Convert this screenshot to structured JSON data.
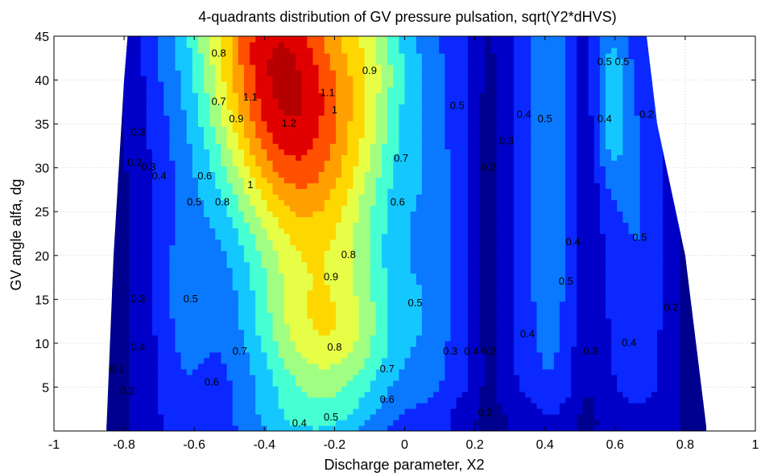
{
  "chart_data": {
    "type": "contour",
    "title": "4-quadrants distribution of GV pressure pulsation, sqrt(Y2*dHVS)",
    "xlabel": "Discharge parameter, X2",
    "ylabel": "GV angle alfa, dg",
    "xlim": [
      -1,
      1
    ],
    "ylim": [
      0,
      45
    ],
    "x_ticks": [
      -1,
      -0.8,
      -0.6,
      -0.4,
      -0.2,
      0,
      0.2,
      0.4,
      0.6,
      0.8,
      1
    ],
    "y_ticks": [
      5,
      10,
      15,
      20,
      25,
      30,
      35,
      40,
      45
    ],
    "x_tick_labels": [
      "-1",
      "-0.8",
      "-0.6",
      "-0.4",
      "-0.2",
      "0",
      "0.2",
      "0.4",
      "0.6",
      "0.8",
      "1"
    ],
    "y_tick_labels": [
      "5",
      "10",
      "15",
      "20",
      "25",
      "30",
      "35",
      "40",
      "45"
    ],
    "grid": true,
    "levels": [
      0.1,
      0.2,
      0.3,
      0.4,
      0.5,
      0.6,
      0.7,
      0.8,
      0.9,
      1.0,
      1.1,
      1.2
    ],
    "level_colors": [
      "#00008f",
      "#0000c8",
      "#0a28ff",
      "#0a78ff",
      "#14c8ff",
      "#46ffd2",
      "#a0ff82",
      "#e6ff46",
      "#ffd700",
      "#ffa000",
      "#ff5000",
      "#e10000",
      "#b40000"
    ],
    "data_boundary": {
      "left": [
        [
          -0.79,
          45
        ],
        [
          -0.8,
          40
        ],
        [
          -0.83,
          20
        ],
        [
          -0.85,
          0.5
        ]
      ],
      "right": [
        [
          0.69,
          45
        ],
        [
          0.72,
          35
        ],
        [
          0.8,
          20
        ],
        [
          0.86,
          0.5
        ]
      ]
    },
    "peak": {
      "x": -0.33,
      "y": 42,
      "value": 1.25
    },
    "contour_labels": [
      {
        "text": "1.2",
        "x": -0.33,
        "y": 35
      },
      {
        "text": "1.1",
        "x": -0.44,
        "y": 38
      },
      {
        "text": "1.1",
        "x": -0.22,
        "y": 38.5
      },
      {
        "text": "1",
        "x": -0.44,
        "y": 28
      },
      {
        "text": "1",
        "x": -0.2,
        "y": 36.5
      },
      {
        "text": "0.9",
        "x": -0.48,
        "y": 35.5
      },
      {
        "text": "0.9",
        "x": -0.21,
        "y": 17.5
      },
      {
        "text": "0.9",
        "x": -0.1,
        "y": 41
      },
      {
        "text": "0.8",
        "x": -0.53,
        "y": 43
      },
      {
        "text": "0.8",
        "x": -0.52,
        "y": 26
      },
      {
        "text": "0.8",
        "x": -0.16,
        "y": 20
      },
      {
        "text": "0.8",
        "x": -0.2,
        "y": 9.5
      },
      {
        "text": "0.7",
        "x": -0.53,
        "y": 37.5
      },
      {
        "text": "0.7",
        "x": -0.47,
        "y": 9
      },
      {
        "text": "0.7",
        "x": -0.01,
        "y": 31
      },
      {
        "text": "0.7",
        "x": -0.05,
        "y": 7
      },
      {
        "text": "0.6",
        "x": -0.57,
        "y": 29
      },
      {
        "text": "0.6",
        "x": -0.02,
        "y": 26
      },
      {
        "text": "0.6",
        "x": -0.55,
        "y": 5.5
      },
      {
        "text": "0.6",
        "x": -0.05,
        "y": 3.5
      },
      {
        "text": "0.5",
        "x": -0.6,
        "y": 26
      },
      {
        "text": "0.5",
        "x": 0.15,
        "y": 37
      },
      {
        "text": "0.5",
        "x": 0.03,
        "y": 14.5
      },
      {
        "text": "0.5",
        "x": -0.61,
        "y": 15
      },
      {
        "text": "0.5",
        "x": -0.21,
        "y": 1.5
      },
      {
        "text": "0.5",
        "x": 0.57,
        "y": 42
      },
      {
        "text": "0.5",
        "x": 0.62,
        "y": 42
      },
      {
        "text": "0.5",
        "x": 0.4,
        "y": 35.5
      },
      {
        "text": "0.5",
        "x": 0.46,
        "y": 17
      },
      {
        "text": "0.5",
        "x": 0.67,
        "y": 22
      },
      {
        "text": "0.4",
        "x": -0.7,
        "y": 29
      },
      {
        "text": "0.4",
        "x": -0.76,
        "y": 9.5
      },
      {
        "text": "0.4",
        "x": 0.34,
        "y": 36
      },
      {
        "text": "0.4",
        "x": 0.57,
        "y": 35.5
      },
      {
        "text": "0.4",
        "x": 0.48,
        "y": 21.5
      },
      {
        "text": "0.4",
        "x": 0.35,
        "y": 11
      },
      {
        "text": "0.4",
        "x": 0.64,
        "y": 10
      },
      {
        "text": "0.4",
        "x": 0.19,
        "y": 9
      },
      {
        "text": "0.4",
        "x": -0.3,
        "y": 0.8
      },
      {
        "text": "0.3",
        "x": -0.76,
        "y": 34
      },
      {
        "text": "0.3",
        "x": -0.73,
        "y": 30
      },
      {
        "text": "0.3",
        "x": -0.76,
        "y": 15
      },
      {
        "text": "0.3",
        "x": 0.13,
        "y": 9
      },
      {
        "text": "0.3",
        "x": 0.29,
        "y": 33
      },
      {
        "text": "0.3",
        "x": 0.53,
        "y": 9
      },
      {
        "text": "0.2",
        "x": -0.77,
        "y": 30.5
      },
      {
        "text": "0.2",
        "x": -0.79,
        "y": 4.5
      },
      {
        "text": "0.2",
        "x": 0.24,
        "y": 30
      },
      {
        "text": "0.2",
        "x": 0.24,
        "y": 9
      },
      {
        "text": "0.2",
        "x": 0.23,
        "y": 2
      },
      {
        "text": "0.2",
        "x": 0.76,
        "y": 14
      },
      {
        "text": "0.2",
        "x": 0.69,
        "y": 36
      },
      {
        "text": "0.1",
        "x": -0.82,
        "y": 7
      }
    ]
  }
}
